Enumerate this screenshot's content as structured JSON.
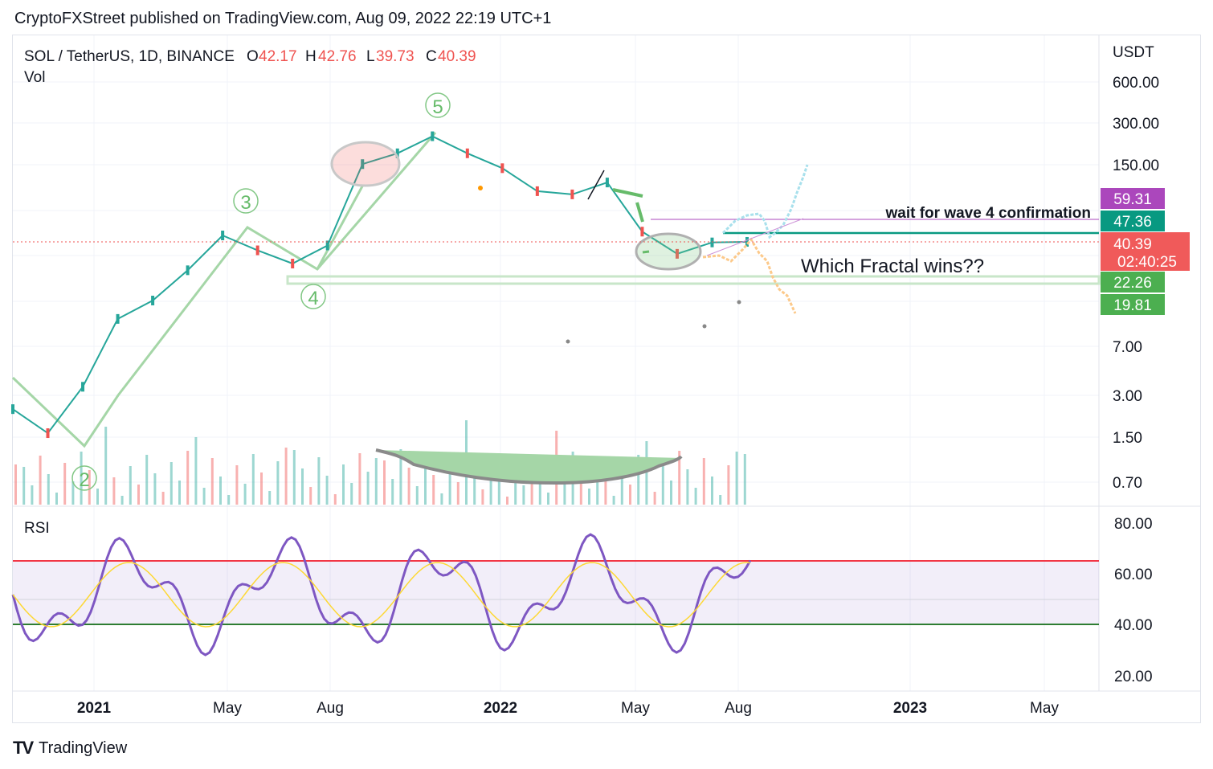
{
  "header": {
    "published": "CryptoFXStreet published on TradingView.com, Aug 09, 2022 22:19 UTC+1"
  },
  "legend": {
    "symbol": "SOL / TetherUS, 1D, BINANCE",
    "o_label": "O",
    "o_val": "42.17",
    "h_label": "H",
    "h_val": "42.76",
    "l_label": "L",
    "l_val": "39.73",
    "c_label": "C",
    "c_val": "40.39",
    "vol": "Vol"
  },
  "axis": {
    "currency": "USDT",
    "price_ticks": [
      "600.00",
      "300.00",
      "150.00",
      "7.00",
      "3.00",
      "1.50",
      "0.70"
    ],
    "rsi_ticks": [
      "80.00",
      "60.00",
      "40.00",
      "20.00"
    ],
    "time_ticks": [
      "2021",
      "May",
      "Aug",
      "2022",
      "May",
      "Aug",
      "2023",
      "May"
    ]
  },
  "price_tags": {
    "t1": "59.31",
    "t2": "47.36",
    "t3": "40.39",
    "t3b": "02:40:25",
    "t4": "22.26",
    "t5": "19.81"
  },
  "annotations": {
    "wait": "wait for wave 4 confirmation",
    "fractal": "Which Fractal wins??",
    "w2": "2",
    "w3": "3",
    "w4": "4",
    "w5": "5"
  },
  "rsi": {
    "label": "RSI"
  },
  "footer": {
    "brand": "TradingView"
  },
  "colors": {
    "up": "#26a69a",
    "down": "#ef5350",
    "rsi": "#7e57c2",
    "wave": "#a5d6a7",
    "purple_tag": "#ab47bc",
    "teal_tag": "#089981",
    "red_tag": "#f23645",
    "green_tag": "#4caf50"
  },
  "chart_data": {
    "type": "line",
    "title": "SOL / TetherUS, 1D, BINANCE",
    "ylabel": "USDT",
    "scale": "log",
    "series": [
      {
        "name": "SOL / TetherUS",
        "x": [
          "2020-11",
          "2020-12",
          "2021-01",
          "2021-02",
          "2021-03",
          "2021-04",
          "2021-05",
          "2021-06",
          "2021-07",
          "2021-08",
          "2021-09",
          "2021-10",
          "2021-11",
          "2021-12",
          "2022-01",
          "2022-02",
          "2022-03",
          "2022-04",
          "2022-05",
          "2022-06",
          "2022-07",
          "2022-08"
        ],
        "values": [
          2.4,
          1.6,
          3.5,
          11,
          15,
          25,
          45,
          35,
          28,
          38,
          150,
          180,
          240,
          180,
          140,
          95,
          90,
          110,
          48,
          33,
          40,
          40.39
        ]
      }
    ],
    "rsi": {
      "upper": 65,
      "lower": 40,
      "ylim": [
        20,
        85
      ]
    },
    "price_levels": [
      59.31,
      47.36,
      40.39,
      22.26,
      19.81
    ],
    "ohlc": {
      "open": 42.17,
      "high": 42.76,
      "low": 39.73,
      "close": 40.39
    }
  }
}
